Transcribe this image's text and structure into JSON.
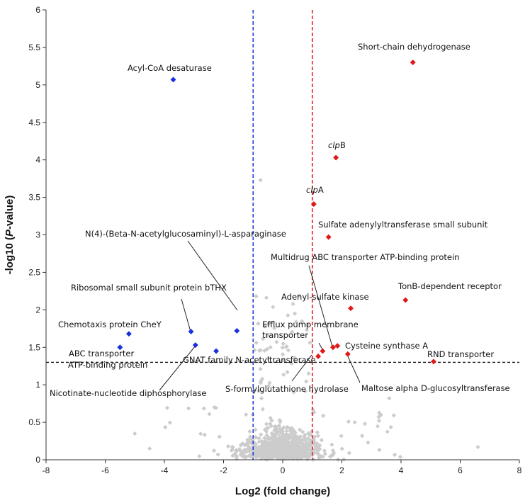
{
  "chart_data": {
    "type": "scatter",
    "title": "",
    "xlabel": "Log2 (fold change)",
    "ylabel_prefix": "-log10 (",
    "ylabel_italic": "P",
    "ylabel_suffix": "-value)",
    "xlim": [
      -8,
      8
    ],
    "ylim": [
      0,
      6
    ],
    "x_ticks": [
      -8,
      -6,
      -4,
      -2,
      0,
      2,
      4,
      6,
      8
    ],
    "y_ticks": [
      0,
      0.5,
      1,
      1.5,
      2,
      2.5,
      3,
      3.5,
      4,
      4.5,
      5,
      5.5,
      6
    ],
    "grid": false,
    "thresholds": {
      "fold_change_down": -1,
      "fold_change_up": 1,
      "significance": 1.3
    },
    "colors": {
      "background_points": "#cccccc",
      "down_regulated": "#1a2fe0",
      "up_regulated": "#e01818",
      "threshold_down": "#1f3fd8",
      "threshold_up": "#e02020",
      "threshold_p": "#111111"
    },
    "series": [
      {
        "group": "down",
        "points": [
          {
            "x": -3.7,
            "y": 5.07,
            "label": "Acyl-CoA desaturase"
          },
          {
            "x": -1.55,
            "y": 1.72,
            "label": "N(4)-(Beta-N-acetylglucosaminyl)-L-asparaginase"
          },
          {
            "x": -3.1,
            "y": 1.71,
            "label": "Ribosomal small subunit protein bTHX"
          },
          {
            "x": -5.2,
            "y": 1.68,
            "label": "Chemotaxis protein CheY"
          },
          {
            "x": -5.5,
            "y": 1.5,
            "label": "ABC transporter ATP-binding protein"
          },
          {
            "x": -2.95,
            "y": 1.53,
            "label": "Nicotinate-nucleotide diphosphorylase"
          },
          {
            "x": -2.25,
            "y": 1.45,
            "label": "GNAT family N-acetyltransferase"
          }
        ]
      },
      {
        "group": "up",
        "points": [
          {
            "x": 4.4,
            "y": 5.3,
            "label": "Short-chain dehydrogenase"
          },
          {
            "x": 1.8,
            "y": 4.03,
            "label": "clpB"
          },
          {
            "x": 1.05,
            "y": 3.41,
            "label": "clpA"
          },
          {
            "x": 1.55,
            "y": 2.97,
            "label": "Sulfate adenylyltransferase small subunit"
          },
          {
            "x": 1.85,
            "y": 1.52,
            "label": "Multidrug ABC transporter ATP-binding protein"
          },
          {
            "x": 4.15,
            "y": 2.13,
            "label": "TonB-dependent receptor"
          },
          {
            "x": 2.3,
            "y": 2.02,
            "label": "Adenyl-sulfate kinase"
          },
          {
            "x": 1.35,
            "y": 1.45,
            "label": "Efflux pump membrane transporter"
          },
          {
            "x": 1.7,
            "y": 1.5,
            "label": "Cysteine synthase A"
          },
          {
            "x": 5.1,
            "y": 1.31,
            "label": "RND transporter"
          },
          {
            "x": 1.2,
            "y": 1.38,
            "label": "S-formylglutathione hydrolase"
          },
          {
            "x": 2.2,
            "y": 1.41,
            "label": "Maltose alpha D-glucosyltransferase"
          }
        ]
      }
    ],
    "annotations": [
      {
        "text": "Acyl-CoA desaturase",
        "x": -3.7,
        "y": 5.07
      },
      {
        "text": "Short-chain dehydrogenase",
        "x": 4.4,
        "y": 5.3
      },
      {
        "text_italic": "clp",
        "text": "B",
        "x": 1.8,
        "y": 4.03
      },
      {
        "text_italic": "clp",
        "text": "A",
        "x": 1.05,
        "y": 3.41
      },
      {
        "text": "Sulfate adenylyltransferase small subunit",
        "x": 1.55,
        "y": 2.97
      },
      {
        "text": "N(4)-(Beta-N-acetylglucosaminyl)-L-asparaginase",
        "x": -1.55,
        "y": 1.72
      },
      {
        "text": "Multidrug ABC transporter ATP-binding protein",
        "x": 1.85,
        "y": 1.52
      },
      {
        "text": "TonB-dependent receptor",
        "x": 4.15,
        "y": 2.13
      },
      {
        "text": "Ribosomal small subunit protein bTHX",
        "x": -3.1,
        "y": 1.71
      },
      {
        "text": "Adenyl-sulfate kinase",
        "x": 2.3,
        "y": 2.02
      },
      {
        "text": "Efflux pump membrane",
        "x": 1.35,
        "y": 1.45
      },
      {
        "text": "transporter",
        "x": 1.35,
        "y": 1.45
      },
      {
        "text": "Chemotaxis protein CheY",
        "x": -5.2,
        "y": 1.68
      },
      {
        "text": "Cysteine synthase A",
        "x": 1.7,
        "y": 1.5
      },
      {
        "text": "ABC transporter",
        "x": -5.5,
        "y": 1.5
      },
      {
        "text": "RND transporter",
        "x": 5.1,
        "y": 1.31
      },
      {
        "text": "ATP-binding protein",
        "x": -5.5,
        "y": 1.5
      },
      {
        "text": "GNAT family N-acetyltransferase",
        "x": -2.25,
        "y": 1.45
      },
      {
        "text": "S-formylglutathione hydrolase",
        "x": 1.2,
        "y": 1.38
      },
      {
        "text": "Maltose alpha D-glucosyltransferase",
        "x": 2.2,
        "y": 1.41
      },
      {
        "text": "Nicotinate-nucleotide diphosphorylase",
        "x": -2.95,
        "y": 1.53
      }
    ]
  }
}
